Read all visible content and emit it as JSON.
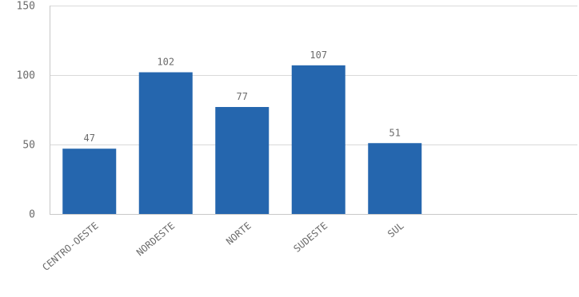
{
  "chart_data": {
    "type": "bar",
    "categories": [
      "CENTRO-OESTE",
      "NORDESTE",
      "NORTE",
      "SUDESTE",
      "SUL"
    ],
    "values": [
      47,
      102,
      77,
      107,
      51
    ],
    "data_labels": [
      "47",
      "102",
      "77",
      "107",
      "51"
    ],
    "y_ticks": [
      0,
      50,
      100,
      150
    ],
    "ylim": [
      0,
      150
    ],
    "grid": true,
    "bar_color": "#2566ae",
    "grid_color": "#d9d9d9",
    "axis_color": "#c8c8c8",
    "text_color": "#6b6b6b"
  }
}
